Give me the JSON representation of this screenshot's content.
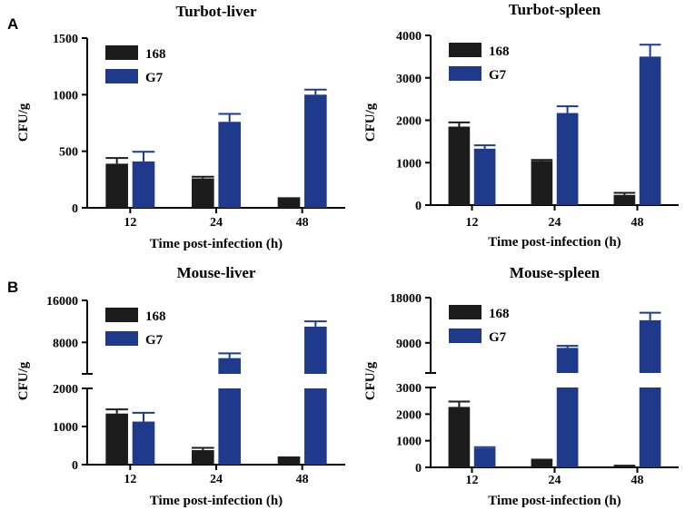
{
  "panel_labels": [
    "A",
    "B"
  ],
  "colors": {
    "series_168": "#1c1c1c",
    "series_G7": "#1f3a8a",
    "axis": "#000000"
  },
  "chart_data": [
    {
      "id": "turbot-liver",
      "panel": "A",
      "type": "bar",
      "title": "Turbot-liver",
      "xlabel": "Time post-infection (h)",
      "ylabel": "CFU/g",
      "categories": [
        "12",
        "24",
        "48"
      ],
      "ylim": [
        0,
        1500
      ],
      "yticks": [
        0,
        500,
        1000,
        1500
      ],
      "legend": "top-left",
      "series": [
        {
          "name": "168",
          "values": [
            390,
            260,
            80
          ],
          "errors": [
            50,
            15,
            5
          ]
        },
        {
          "name": "G7",
          "values": [
            410,
            760,
            1000
          ],
          "errors": [
            85,
            70,
            45
          ]
        }
      ]
    },
    {
      "id": "turbot-spleen",
      "panel": "A",
      "type": "bar",
      "title": "Turbot-spleen",
      "xlabel": "Time post-infection (h)",
      "ylabel": "CFU/g",
      "categories": [
        "12",
        "24",
        "48"
      ],
      "ylim": [
        0,
        4000
      ],
      "yticks": [
        0,
        1000,
        2000,
        3000,
        4000
      ],
      "legend": "top-left",
      "series": [
        {
          "name": "168",
          "values": [
            1850,
            1040,
            240
          ],
          "errors": [
            100,
            25,
            50
          ]
        },
        {
          "name": "G7",
          "values": [
            1330,
            2170,
            3500
          ],
          "errors": [
            80,
            160,
            280
          ]
        }
      ]
    },
    {
      "id": "mouse-liver",
      "panel": "B",
      "type": "bar",
      "title": "Mouse-liver",
      "xlabel": "Time post-infection (h)",
      "ylabel": "CFU/g",
      "categories": [
        "12",
        "24",
        "48"
      ],
      "ylim": [
        0,
        16000
      ],
      "axis_break": {
        "lower": [
          0,
          2000
        ],
        "upper": [
          2000,
          16000
        ]
      },
      "yticks": [
        0,
        1000,
        2000,
        8000,
        16000
      ],
      "legend": "top-left",
      "series": [
        {
          "name": "168",
          "values": [
            1340,
            380,
            180
          ],
          "errors": [
            110,
            60,
            10
          ]
        },
        {
          "name": "G7",
          "values": [
            1130,
            5000,
            11000
          ],
          "errors": [
            230,
            900,
            1000
          ]
        }
      ]
    },
    {
      "id": "mouse-spleen",
      "panel": "B",
      "type": "bar",
      "title": "Mouse-spleen",
      "xlabel": "Time post-infection (h)",
      "ylabel": "CFU/g",
      "categories": [
        "12",
        "24",
        "48"
      ],
      "ylim": [
        0,
        18000
      ],
      "axis_break": {
        "lower": [
          0,
          3000
        ],
        "upper": [
          3000,
          18000
        ]
      },
      "yticks": [
        0,
        1000,
        2000,
        3000,
        9000,
        18000
      ],
      "legend": "top-left",
      "series": [
        {
          "name": "168",
          "values": [
            2270,
            270,
            60
          ],
          "errors": [
            200,
            20,
            5
          ]
        },
        {
          "name": "G7",
          "values": [
            720,
            8000,
            13500
          ],
          "errors": [
            40,
            400,
            1500
          ]
        }
      ]
    }
  ]
}
